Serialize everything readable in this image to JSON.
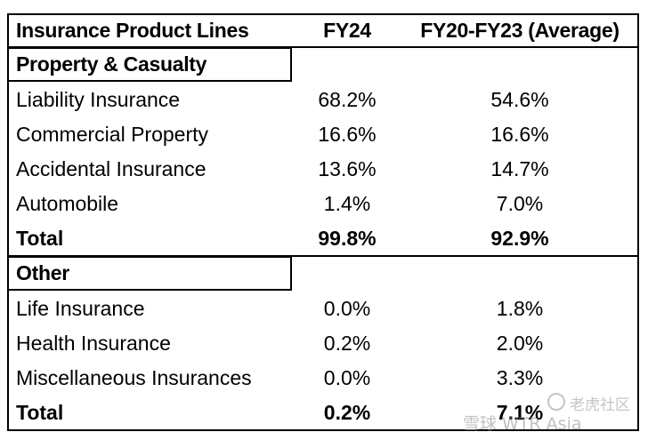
{
  "header": {
    "col1": "Insurance Product Lines",
    "col2": "FY24",
    "col3": "FY20-FY23 (Average)"
  },
  "sections": [
    {
      "title": "Property & Casualty",
      "rows": [
        {
          "label": "Liability Insurance",
          "fy24": "68.2%",
          "avg": "54.6%"
        },
        {
          "label": "Commercial Property",
          "fy24": "16.6%",
          "avg": "16.6%"
        },
        {
          "label": "Accidental Insurance",
          "fy24": "13.6%",
          "avg": "14.7%"
        },
        {
          "label": "Automobile",
          "fy24": "1.4%",
          "avg": "7.0%"
        }
      ],
      "total": {
        "label": "Total",
        "fy24": "99.8%",
        "avg": "92.9%"
      }
    },
    {
      "title": "Other",
      "rows": [
        {
          "label": "Life Insurance",
          "fy24": "0.0%",
          "avg": "1.8%"
        },
        {
          "label": "Health Insurance",
          "fy24": "0.2%",
          "avg": "2.0%"
        },
        {
          "label": "Miscellaneous Insurances",
          "fy24": "0.0%",
          "avg": "3.3%"
        }
      ],
      "total": {
        "label": "Total",
        "fy24": "0.2%",
        "avg": "7.1%"
      }
    }
  ],
  "watermark": {
    "line1": "老虎社区",
    "line2": "雪球 WTR Asia"
  }
}
